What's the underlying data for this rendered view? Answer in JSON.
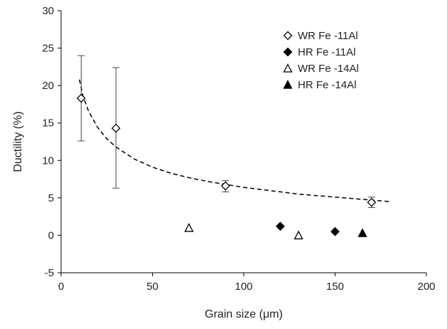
{
  "chart_data": {
    "type": "scatter",
    "xlabel": "Grain size (μm)",
    "ylabel": "Ductility (%)",
    "xlim": [
      0,
      200
    ],
    "ylim": [
      -5,
      30
    ],
    "xticks": [
      0,
      50,
      100,
      150,
      200
    ],
    "yticks": [
      -5,
      0,
      5,
      10,
      15,
      20,
      25,
      30
    ],
    "grid": false,
    "legend_position": "top-right",
    "series": [
      {
        "name": "WR Fe -11Al",
        "marker": "diamond-open",
        "points": [
          {
            "x": 11,
            "y": 18.3,
            "err_low": 12.6,
            "err_high": 24.0
          },
          {
            "x": 30,
            "y": 14.3,
            "err_low": 6.3,
            "err_high": 22.4
          },
          {
            "x": 90,
            "y": 6.6,
            "err_low": 5.8,
            "err_high": 7.3
          },
          {
            "x": 170,
            "y": 4.4,
            "err_low": 3.7,
            "err_high": 5.1
          }
        ]
      },
      {
        "name": "HR Fe -11Al",
        "marker": "diamond-filled",
        "points": [
          {
            "x": 120,
            "y": 1.2
          },
          {
            "x": 150,
            "y": 0.5
          }
        ]
      },
      {
        "name": "WR Fe -14Al",
        "marker": "triangle-open",
        "points": [
          {
            "x": 70,
            "y": 1.0
          },
          {
            "x": 130,
            "y": 0.0
          }
        ]
      },
      {
        "name": "HR Fe -14Al",
        "marker": "triangle-filled",
        "points": [
          {
            "x": 165,
            "y": 0.3
          }
        ]
      }
    ],
    "trendline": {
      "style": "dashed",
      "x": [
        10,
        12,
        15,
        20,
        25,
        30,
        40,
        50,
        60,
        70,
        80,
        90,
        100,
        110,
        120,
        130,
        140,
        150,
        160,
        170,
        180
      ],
      "y": [
        20.8,
        18.6,
        16.6,
        14.4,
        12.9,
        11.8,
        10.2,
        9.1,
        8.3,
        7.7,
        7.2,
        6.8,
        6.4,
        6.1,
        5.8,
        5.5,
        5.3,
        5.1,
        4.9,
        4.7,
        4.5
      ]
    },
    "colors": {
      "marker": "#000000",
      "axis": "#000000",
      "trendline": "#000000"
    }
  }
}
